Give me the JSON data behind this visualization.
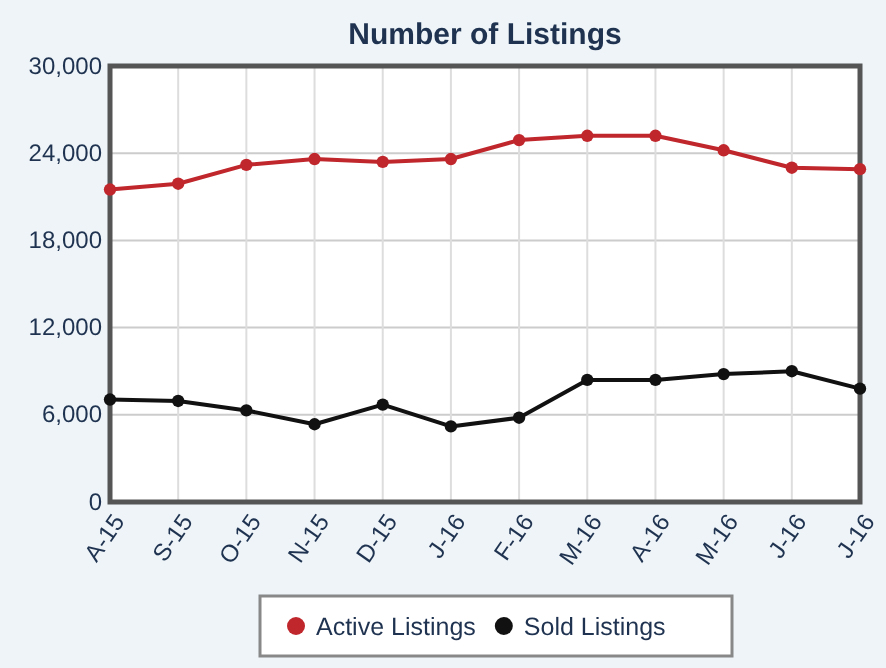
{
  "chart_data": {
    "type": "line",
    "title": "Number of Listings",
    "categories": [
      "A-15",
      "S-15",
      "O-15",
      "N-15",
      "D-15",
      "J-16",
      "F-16",
      "M-16",
      "A-16",
      "M-16",
      "J-16",
      "J-16"
    ],
    "series": [
      {
        "name": "Active Listings",
        "color": "#c0272d",
        "values": [
          21500,
          21900,
          23200,
          23600,
          23400,
          23600,
          24900,
          25200,
          25200,
          24200,
          23000,
          22900
        ]
      },
      {
        "name": "Sold Listings",
        "color": "#111111",
        "values": [
          7050,
          6950,
          6300,
          5350,
          6700,
          5200,
          5800,
          8400,
          8400,
          8800,
          9000,
          7800
        ]
      }
    ],
    "ylim": [
      0,
      30000
    ],
    "yticks": [
      {
        "value": 0,
        "label": "0"
      },
      {
        "value": 6000,
        "label": "6,000"
      },
      {
        "value": 12000,
        "label": "12,000"
      },
      {
        "value": 18000,
        "label": "18,000"
      },
      {
        "value": 24000,
        "label": "24,000"
      },
      {
        "value": 30000,
        "label": "30,000"
      }
    ],
    "grid": true,
    "legend": "bottom",
    "marker": "circle",
    "line_style": "solid"
  }
}
